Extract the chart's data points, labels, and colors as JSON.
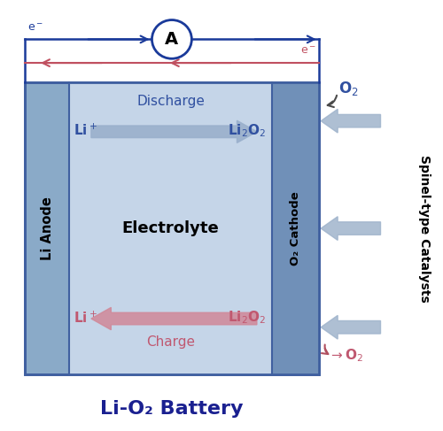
{
  "fig_width": 5.0,
  "fig_height": 4.87,
  "dpi": 100,
  "bg_color": "#ffffff",
  "anode_color": "#8aaac8",
  "cathode_color": "#7090b8",
  "electrolyte_color": "#c5d5e8",
  "blue_arrow_color": "#9ab0cc",
  "pink_arrow_color": "#d08898",
  "circuit_blue": "#1a3a9a",
  "circuit_pink": "#c05060",
  "discharge_text_color": "#3050a0",
  "charge_text_color": "#c05870",
  "o2_arrow_color": "#a0b4cc",
  "border_color": "#4060a0",
  "li_anode_text": "Li Anode",
  "o2_cathode_text": "O₂ Cathode",
  "electrolyte_text": "Electrolyte",
  "discharge_text": "Discharge",
  "charge_text": "Charge",
  "title_text": "Li-O₂ Battery",
  "spinel_text": "Spinel-type Catalysts"
}
